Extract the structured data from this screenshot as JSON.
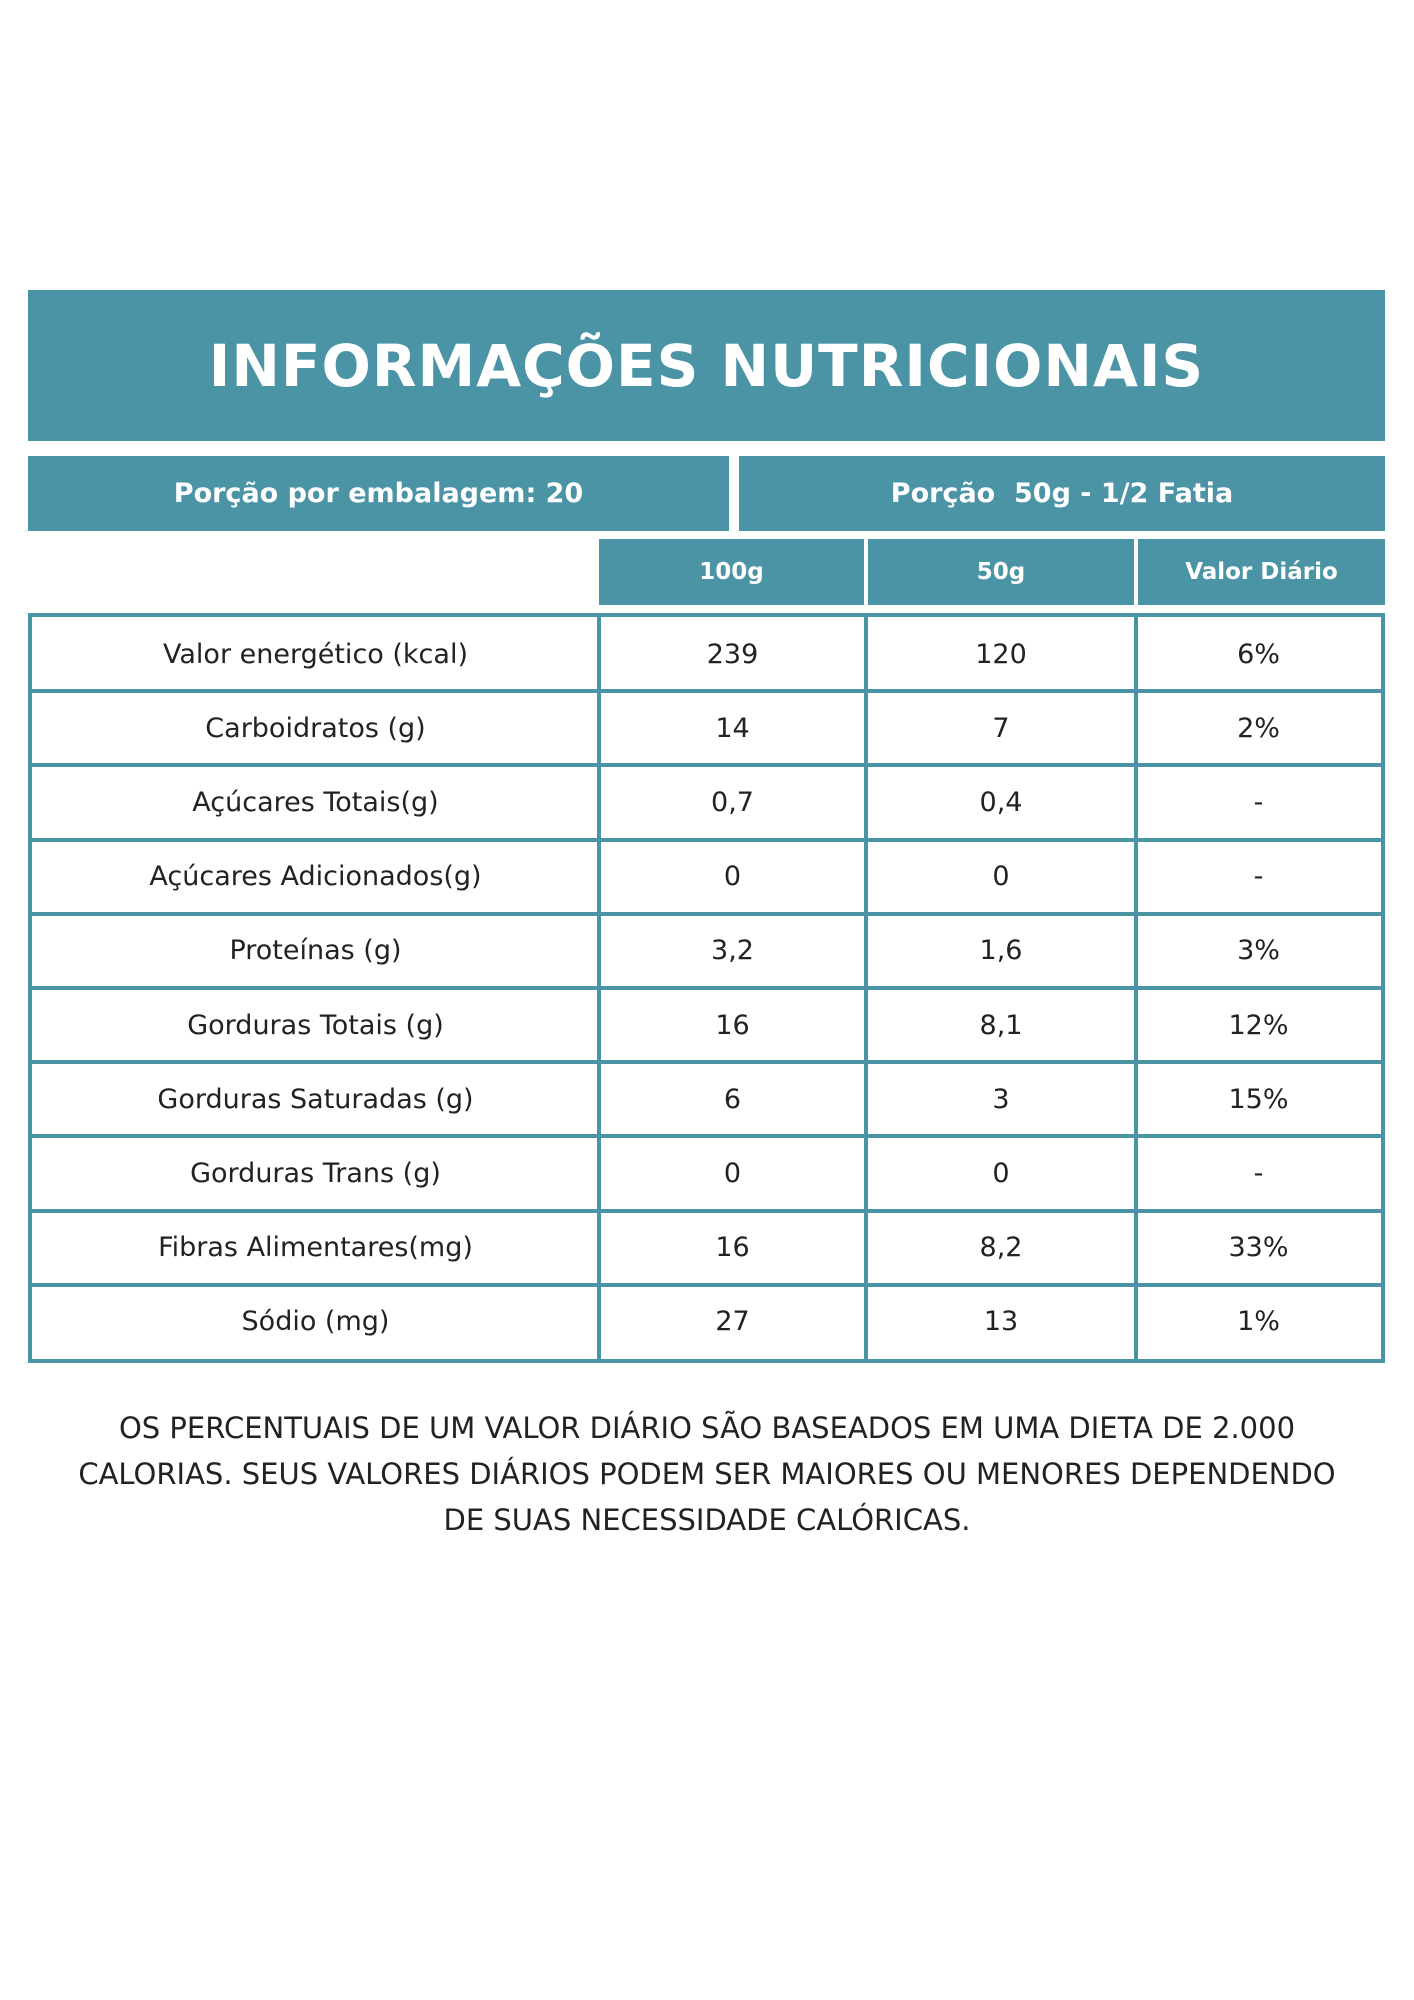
{
  "header": {
    "title": "INFORMAÇÕES NUTRICIONAIS"
  },
  "portion": {
    "servings": "Porção por embalagem: 20",
    "size": "Porção  50g - 1/2 Fatia"
  },
  "table": {
    "columns": [
      "100g",
      "50g",
      "Valor Diário"
    ],
    "rows": [
      [
        "Valor energético (kcal)",
        "239",
        "120",
        "6%"
      ],
      [
        "Carboidratos (g)",
        "14",
        "7",
        "2%"
      ],
      [
        "Açúcares Totais(g)",
        "0,7",
        "0,4",
        "-"
      ],
      [
        "Açúcares Adicionados(g)",
        "0",
        "0",
        "-"
      ],
      [
        "Proteínas (g)",
        "3,2",
        "1,6",
        "3%"
      ],
      [
        "Gorduras Totais (g)",
        "16",
        "8,1",
        "12%"
      ],
      [
        "Gorduras Saturadas (g)",
        "6",
        "3",
        "15%"
      ],
      [
        "Gorduras Trans (g)",
        "0",
        "0",
        "-"
      ],
      [
        "Fibras Alimentares(mg)",
        "16",
        "8,2",
        "33%"
      ],
      [
        "Sódio (mg)",
        "27",
        "13",
        "1%"
      ]
    ]
  },
  "footnote": [
    "OS PERCENTUAIS DE UM VALOR DIÁRIO SÃO BASEADOS EM UMA DIETA DE 2.000",
    "CALORIAS. SEUS VALORES DIÁRIOS PODEM SER MAIORES OU MENORES DEPENDENDO",
    "DE SUAS NECESSIDADE CALÓRICAS."
  ]
}
